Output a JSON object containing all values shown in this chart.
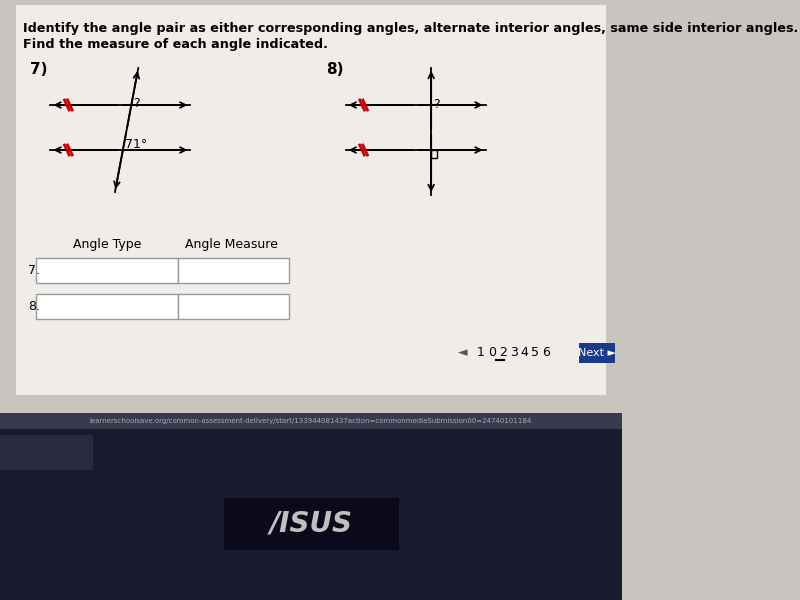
{
  "bg_color": "#c8c4c0",
  "page_bg": "#f0ede8",
  "title_line1": "Identify the angle pair as either corresponding angles, alternate interior angles, same side interior angles.",
  "title_line2": "Find the measure of each angle indicated.",
  "problem7_label": "7)",
  "problem8_label": "8)",
  "angle_type_label": "Angle Type",
  "angle_measure_label": "Angle Measure",
  "row7_label": "7.",
  "row8_label": "8.",
  "angle_text_7": "71°",
  "question_mark": "?",
  "red_color": "#cc0000",
  "black_color": "#000000",
  "white_color": "#ffffff",
  "nav_blue": "#1a3a8a",
  "box_fill": "#ffffff",
  "taskbar_color": "#1a1a2e",
  "browser_bar_color": "#2a2a3e",
  "url_text": "learnerschoolsave.org/common-assessment-delivery/start/133944081437action=commonmediaSubmission00=24740101184",
  "asus_text": "/ISUS"
}
